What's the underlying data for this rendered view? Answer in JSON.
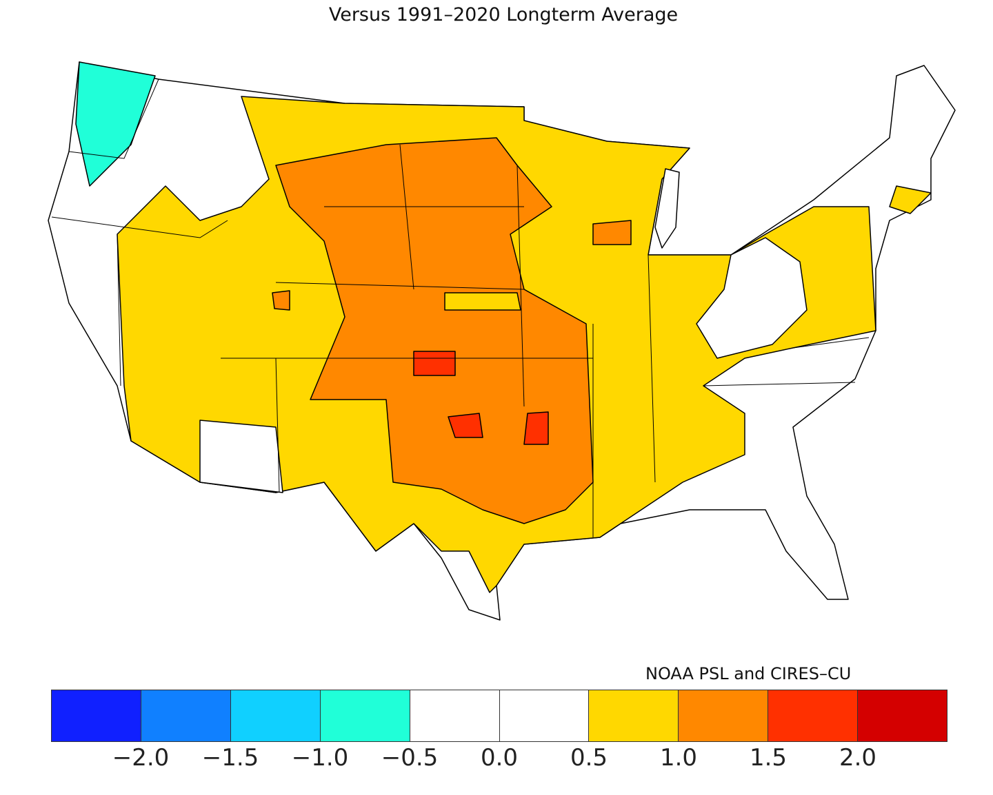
{
  "title": "Versus 1991–2020 Longterm Average",
  "credit": "NOAA PSL and CIRES–CU",
  "legend": {
    "colors": [
      "#1020ff",
      "#1080ff",
      "#10d0ff",
      "#20ffd8",
      "#ffffff",
      "#ffffff",
      "#ffd800",
      "#ff8800",
      "#ff3000",
      "#d40000"
    ],
    "ticks": [
      "−2.0",
      "−1.5",
      "−1.0",
      "−0.5",
      "0.0",
      "0.5",
      "1.0",
      "1.5",
      "2.0"
    ]
  },
  "map_categories": {
    "near_normal": "#ffffff",
    "above_0_5": "#ffd800",
    "above_1_0": "#ff8800",
    "above_1_5": "#ff3000",
    "below_0_5": "#20ffd8"
  }
}
